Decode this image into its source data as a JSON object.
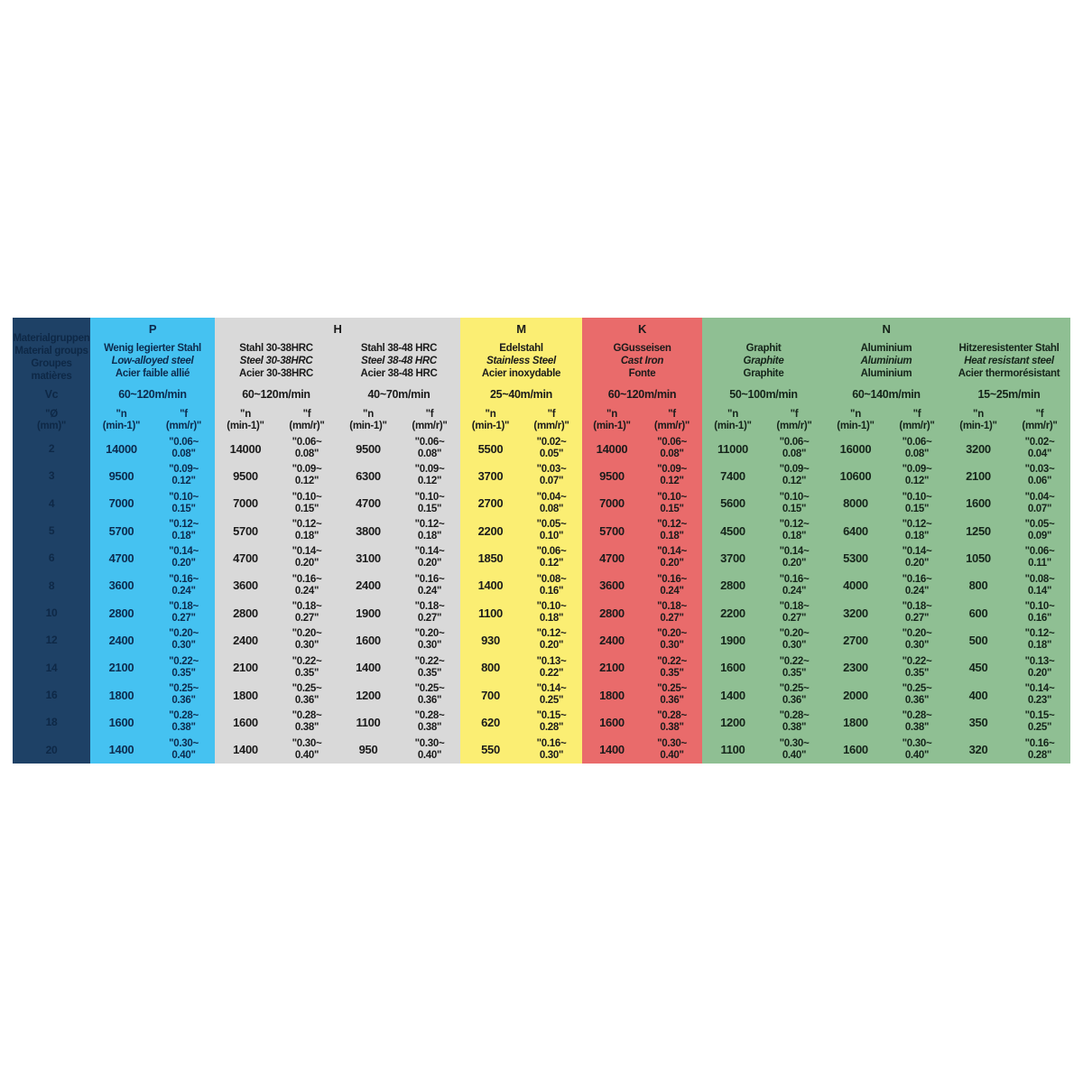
{
  "table": {
    "left": {
      "bg": "#1e4166",
      "text_color": "#0e2846",
      "title_lines": [
        "Materialgruppen",
        "Material groups",
        "Groupes matières"
      ],
      "vc_label": "Vc",
      "dia_header": "\"Ø\n(mm)\"",
      "diameters": [
        "2",
        "3",
        "4",
        "5",
        "6",
        "8",
        "10",
        "12",
        "14",
        "16",
        "18",
        "20"
      ]
    },
    "sub_headers": {
      "n": "\"n\n(min-1)\"",
      "f": "\"f\n(mm/r)\""
    },
    "groups": [
      {
        "letter": "P",
        "bg": "#45c2f1",
        "text_color": "#0d2b4e",
        "materials": [
          {
            "names": [
              "Wenig legierter Stahl",
              "Low-alloyed steel",
              "Acier faible allié"
            ],
            "vc": "60~120m/min",
            "n": [
              "14000",
              "9500",
              "7000",
              "5700",
              "4700",
              "3600",
              "2800",
              "2400",
              "2100",
              "1800",
              "1600",
              "1400"
            ],
            "f": [
              "\"0.06~\n0.08\"",
              "\"0.09~\n0.12\"",
              "\"0.10~\n0.15\"",
              "\"0.12~\n0.18\"",
              "\"0.14~\n0.20\"",
              "\"0.16~\n0.24\"",
              "\"0.18~\n0.27\"",
              "\"0.20~\n0.30\"",
              "\"0.22~\n0.35\"",
              "\"0.25~\n0.36\"",
              "\"0.28~\n0.38\"",
              "\"0.30~\n0.40\""
            ]
          }
        ]
      },
      {
        "letter": "H",
        "bg": "#d9d9d9",
        "text_color": "#1b1b1b",
        "materials": [
          {
            "names": [
              "Stahl 30-38HRC",
              "Steel 30-38HRC",
              "Acier 30-38HRC"
            ],
            "vc": "60~120m/min",
            "n": [
              "14000",
              "9500",
              "7000",
              "5700",
              "4700",
              "3600",
              "2800",
              "2400",
              "2100",
              "1800",
              "1600",
              "1400"
            ],
            "f": [
              "\"0.06~\n0.08\"",
              "\"0.09~\n0.12\"",
              "\"0.10~\n0.15\"",
              "\"0.12~\n0.18\"",
              "\"0.14~\n0.20\"",
              "\"0.16~\n0.24\"",
              "\"0.18~\n0.27\"",
              "\"0.20~\n0.30\"",
              "\"0.22~\n0.35\"",
              "\"0.25~\n0.36\"",
              "\"0.28~\n0.38\"",
              "\"0.30~\n0.40\""
            ]
          },
          {
            "names": [
              "Stahl 38-48 HRC",
              "Steel 38-48 HRC",
              "Acier 38-48 HRC"
            ],
            "vc": "40~70m/min",
            "n": [
              "9500",
              "6300",
              "4700",
              "3800",
              "3100",
              "2400",
              "1900",
              "1600",
              "1400",
              "1200",
              "1100",
              "950"
            ],
            "f": [
              "\"0.06~\n0.08\"",
              "\"0.09~\n0.12\"",
              "\"0.10~\n0.15\"",
              "\"0.12~\n0.18\"",
              "\"0.14~\n0.20\"",
              "\"0.16~\n0.24\"",
              "\"0.18~\n0.27\"",
              "\"0.20~\n0.30\"",
              "\"0.22~\n0.35\"",
              "\"0.25~\n0.36\"",
              "\"0.28~\n0.38\"",
              "\"0.30~\n0.40\""
            ]
          }
        ]
      },
      {
        "letter": "M",
        "bg": "#fbee73",
        "text_color": "#1b1b1b",
        "materials": [
          {
            "names": [
              "Edelstahl",
              "Stainless Steel",
              "Acier inoxydable"
            ],
            "vc": "25~40m/min",
            "n": [
              "5500",
              "3700",
              "2700",
              "2200",
              "1850",
              "1400",
              "1100",
              "930",
              "800",
              "700",
              "620",
              "550"
            ],
            "f": [
              "\"0.02~\n0.05\"",
              "\"0.03~\n0.07\"",
              "\"0.04~\n0.08\"",
              "\"0.05~\n0.10\"",
              "\"0.06~\n0.12\"",
              "\"0.08~\n0.16\"",
              "\"0.10~\n0.18\"",
              "\"0.12~\n0.20\"",
              "\"0.13~\n0.22\"",
              "\"0.14~\n0.25\"",
              "\"0.15~\n0.28\"",
              "\"0.16~\n0.30\""
            ]
          }
        ]
      },
      {
        "letter": "K",
        "bg": "#e96b6b",
        "text_color": "#1b1b1b",
        "materials": [
          {
            "names": [
              "GGusseisen",
              "Cast Iron",
              "Fonte"
            ],
            "vc": "60~120m/min",
            "n": [
              "14000",
              "9500",
              "7000",
              "5700",
              "4700",
              "3600",
              "2800",
              "2400",
              "2100",
              "1800",
              "1600",
              "1400"
            ],
            "f": [
              "\"0.06~\n0.08\"",
              "\"0.09~\n0.12\"",
              "\"0.10~\n0.15\"",
              "\"0.12~\n0.18\"",
              "\"0.14~\n0.20\"",
              "\"0.16~\n0.24\"",
              "\"0.18~\n0.27\"",
              "\"0.20~\n0.30\"",
              "\"0.22~\n0.35\"",
              "\"0.25~\n0.36\"",
              "\"0.28~\n0.38\"",
              "\"0.30~\n0.40\""
            ]
          }
        ]
      },
      {
        "letter": "N",
        "bg": "#8fbf93",
        "text_color": "#15241a",
        "materials": [
          {
            "names": [
              "Graphit",
              "Graphite",
              "Graphite"
            ],
            "vc": "50~100m/min",
            "n": [
              "11000",
              "7400",
              "5600",
              "4500",
              "3700",
              "2800",
              "2200",
              "1900",
              "1600",
              "1400",
              "1200",
              "1100"
            ],
            "f": [
              "\"0.06~\n0.08\"",
              "\"0.09~\n0.12\"",
              "\"0.10~\n0.15\"",
              "\"0.12~\n0.18\"",
              "\"0.14~\n0.20\"",
              "\"0.16~\n0.24\"",
              "\"0.18~\n0.27\"",
              "\"0.20~\n0.30\"",
              "\"0.22~\n0.35\"",
              "\"0.25~\n0.36\"",
              "\"0.28~\n0.38\"",
              "\"0.30~\n0.40\""
            ]
          },
          {
            "names": [
              "Aluminium",
              "Aluminium",
              "Aluminium"
            ],
            "vc": "60~140m/min",
            "n": [
              "16000",
              "10600",
              "8000",
              "6400",
              "5300",
              "4000",
              "3200",
              "2700",
              "2300",
              "2000",
              "1800",
              "1600"
            ],
            "f": [
              "\"0.06~\n0.08\"",
              "\"0.09~\n0.12\"",
              "\"0.10~\n0.15\"",
              "\"0.12~\n0.18\"",
              "\"0.14~\n0.20\"",
              "\"0.16~\n0.24\"",
              "\"0.18~\n0.27\"",
              "\"0.20~\n0.30\"",
              "\"0.22~\n0.35\"",
              "\"0.25~\n0.36\"",
              "\"0.28~\n0.38\"",
              "\"0.30~\n0.40\""
            ]
          },
          {
            "names": [
              "Hitzeresistenter Stahl",
              "Heat resistant steel",
              "Acier thermorésistant"
            ],
            "vc": "15~25m/min",
            "n": [
              "3200",
              "2100",
              "1600",
              "1250",
              "1050",
              "800",
              "600",
              "500",
              "450",
              "400",
              "350",
              "320"
            ],
            "f": [
              "\"0.02~\n0.04\"",
              "\"0.03~\n0.06\"",
              "\"0.04~\n0.07\"",
              "\"0.05~\n0.09\"",
              "\"0.06~\n0.11\"",
              "\"0.08~\n0.14\"",
              "\"0.10~\n0.16\"",
              "\"0.12~\n0.18\"",
              "\"0.13~\n0.20\"",
              "\"0.14~\n0.23\"",
              "\"0.15~\n0.25\"",
              "\"0.16~\n0.28\""
            ]
          }
        ]
      }
    ]
  }
}
